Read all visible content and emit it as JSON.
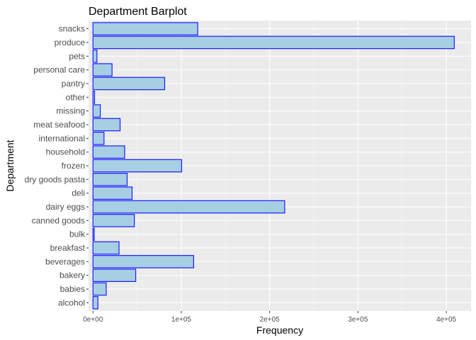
{
  "chart_data": {
    "type": "bar",
    "orientation": "horizontal",
    "title": "Department Barplot",
    "xlabel": "Frequency",
    "ylabel": "Department",
    "xlim": [
      -5000,
      428000
    ],
    "xticks": [
      0,
      100000,
      200000,
      300000,
      400000
    ],
    "xtick_labels": [
      "0e+00",
      "1e+05",
      "2e+05",
      "3e+05",
      "4e+05"
    ],
    "grid": true,
    "legend": "none",
    "bar_fill": "#a6cfe3",
    "bar_stroke": "#1a1aff",
    "panel_bg": "#ebebeb",
    "grid_major": "#ffffff",
    "grid_minor": "#f5f5f5",
    "categories": [
      "alcohol",
      "babies",
      "bakery",
      "beverages",
      "breakfast",
      "bulk",
      "canned goods",
      "dairy eggs",
      "deli",
      "dry goods pasta",
      "frozen",
      "household",
      "international",
      "meat seafood",
      "missing",
      "other",
      "pantry",
      "personal care",
      "pets",
      "produce",
      "snacks"
    ],
    "values": [
      5600,
      15000,
      48400,
      114000,
      29500,
      1400,
      46800,
      217000,
      44300,
      38700,
      100400,
      35900,
      12500,
      30700,
      8300,
      1800,
      81200,
      21600,
      4500,
      409000,
      118600
    ]
  }
}
